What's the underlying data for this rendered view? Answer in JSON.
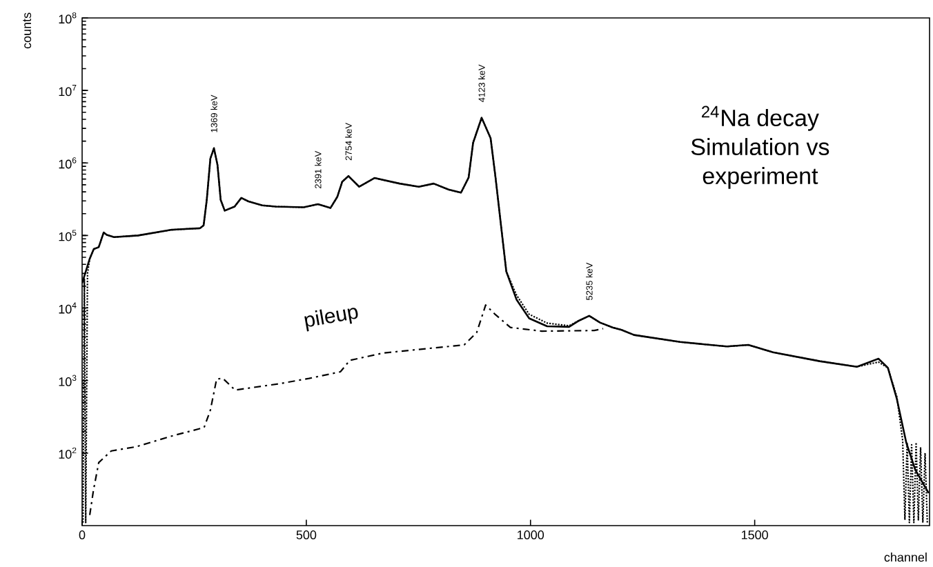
{
  "chart_data": {
    "type": "line",
    "xlabel": "channel",
    "ylabel": "counts",
    "xlim": [
      0,
      1890
    ],
    "ylim": [
      10,
      100000000
    ],
    "xticks": [
      0,
      500,
      1000,
      1500
    ],
    "yticks": [
      {
        "value": 100,
        "label": "10$^{2}$"
      },
      {
        "value": 1000,
        "label": "10$^{3}$"
      },
      {
        "value": 10000,
        "label": "10$^{4}$"
      },
      {
        "value": 100000,
        "label": "10$^{5}$"
      },
      {
        "value": 1000000,
        "label": "10$^{6}$"
      },
      {
        "value": 10000000,
        "label": "10$^{7}$"
      },
      {
        "value": 100000000,
        "label": "10$^{8}$"
      }
    ],
    "log": "y",
    "series": [
      {
        "color": "#000000",
        "line_style": "solid",
        "x": [
          0,
          17,
          26,
          37,
          48,
          55,
          71,
          125,
          200,
          263,
          271,
          278,
          286,
          294,
          302,
          309,
          318,
          340,
          355,
          371,
          402,
          432,
          494,
          526,
          554,
          569,
          580,
          594,
          618,
          652,
          708,
          751,
          784,
          817,
          845,
          862,
          872,
          891,
          911,
          922,
          933,
          946,
          969,
          997,
          1037,
          1086,
          1106,
          1131,
          1155,
          1183,
          1203,
          1231,
          1334,
          1438,
          1486,
          1541,
          1645,
          1728,
          1776,
          1797,
          1817,
          1838,
          1858,
          1888
        ],
        "values": [
          22000,
          48000,
          65000,
          69000,
          110000,
          102000,
          95000,
          100000,
          120000,
          126000,
          138000,
          310000,
          1150000,
          1600000,
          930000,
          310000,
          220000,
          250000,
          330000,
          295000,
          260000,
          250000,
          245000,
          270000,
          240000,
          340000,
          550000,
          660000,
          470000,
          620000,
          520000,
          470000,
          520000,
          430000,
          390000,
          630000,
          1900000,
          4200000,
          2200000,
          630000,
          160000,
          32000,
          13000,
          7200,
          5600,
          5500,
          6600,
          7800,
          6300,
          5400,
          5000,
          4250,
          3400,
          2950,
          3100,
          2450,
          1850,
          1550,
          2000,
          1500,
          560,
          140,
          59,
          28
        ]
      },
      {
        "color": "#000000",
        "line_style": "dotted",
        "x": [
          2,
          5,
          8,
          12,
          17,
          26,
          37,
          48,
          55,
          71,
          125,
          200,
          263,
          271,
          278,
          286,
          294,
          302,
          309,
          318,
          340,
          355,
          371,
          402,
          432,
          494,
          526,
          554,
          569,
          580,
          594,
          618,
          652,
          708,
          751,
          784,
          817,
          845,
          862,
          872,
          891,
          911,
          922,
          933,
          946,
          969,
          997,
          1037,
          1086,
          1106,
          1131,
          1155,
          1183,
          1203,
          1231,
          1334,
          1438,
          1486,
          1541,
          1645,
          1728,
          1776,
          1797,
          1817,
          1830,
          1835,
          1840,
          1845,
          1850,
          1855,
          1860,
          1865,
          1870,
          1875,
          1880,
          1885
        ],
        "values": [
          11,
          25000,
          11,
          30000,
          48000,
          65000,
          69000,
          110000,
          102000,
          95000,
          100000,
          120000,
          126000,
          138000,
          310000,
          1150000,
          1600000,
          930000,
          310000,
          220000,
          250000,
          330000,
          295000,
          260000,
          250000,
          245000,
          270000,
          240000,
          340000,
          550000,
          660000,
          470000,
          620000,
          520000,
          470000,
          520000,
          430000,
          390000,
          630000,
          1900000,
          4200000,
          2200000,
          630000,
          160000,
          32000,
          15000,
          8200,
          6200,
          5700,
          6600,
          7800,
          6300,
          5400,
          5000,
          4250,
          3400,
          2950,
          3100,
          2450,
          1850,
          1550,
          1800,
          1500,
          600,
          150,
          12,
          140,
          11,
          130,
          11,
          140,
          12,
          120,
          11,
          100,
          11
        ]
      },
      {
        "color": "#000000",
        "line_style": "dashed",
        "x": [
          17,
          25,
          37,
          65,
          120,
          197,
          272,
          286,
          300,
          314,
          341,
          438,
          506,
          576,
          597,
          672,
          852,
          880,
          900,
          920,
          955,
          1025,
          1142,
          1162
        ],
        "values": [
          14,
          30,
          74,
          107,
          122,
          170,
          225,
          390,
          1050,
          1070,
          740,
          900,
          1070,
          1320,
          1900,
          2400,
          3100,
          4600,
          11000,
          8300,
          5400,
          4800,
          4900,
          5200
        ]
      }
    ],
    "annotations": [
      {
        "text": "1369 keV",
        "x": 294,
        "y": 1600000
      },
      {
        "text": "2391 keV",
        "x": 526,
        "y": 270000
      },
      {
        "text": "2754 keV",
        "x": 594,
        "y": 660000
      },
      {
        "text": "4123 keV",
        "x": 891,
        "y": 4200000
      },
      {
        "text": "5235 keV",
        "x": 1131,
        "y": 7800
      },
      "$^{24}$Na decay Simulation vs experiment",
      "pileup"
    ]
  }
}
